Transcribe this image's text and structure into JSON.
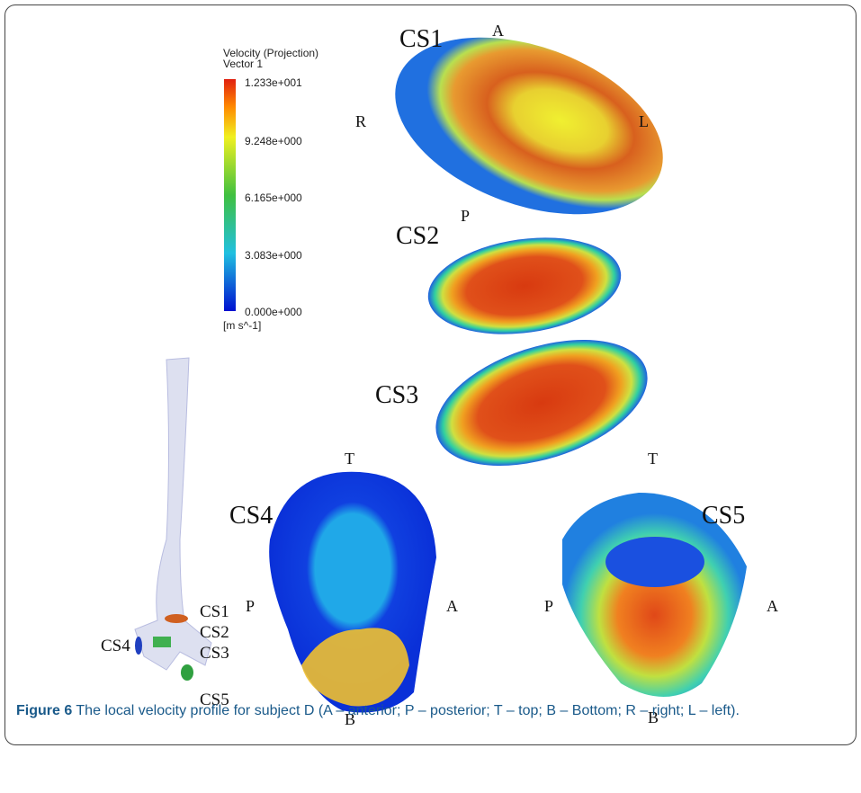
{
  "legend": {
    "title": "Velocity (Projection)",
    "subtitle": "Vector 1",
    "ticks": [
      "1.233e+001",
      "9.248e+000",
      "6.165e+000",
      "3.083e+000",
      "0.000e+000"
    ],
    "unit": "[m s^-1]"
  },
  "panels": [
    {
      "name": "CS1",
      "top": "A",
      "left": "R",
      "right": "L",
      "bottom": "P"
    },
    {
      "name": "CS2"
    },
    {
      "name": "CS3"
    },
    {
      "name": "CS4",
      "top": "T",
      "left": "P",
      "right": "A",
      "bottom": "B"
    },
    {
      "name": "CS5",
      "top": "T",
      "left": "P",
      "right": "A",
      "bottom": "B"
    }
  ],
  "vessel_labels": [
    "CS1",
    "CS2",
    "CS3",
    "CS4",
    "CS5"
  ],
  "caption": {
    "label": "Figure 6",
    "text": "The local velocity profile for subject D (A – anterior; P – posterior; T – top; B – Bottom; R – right; L – left)."
  }
}
